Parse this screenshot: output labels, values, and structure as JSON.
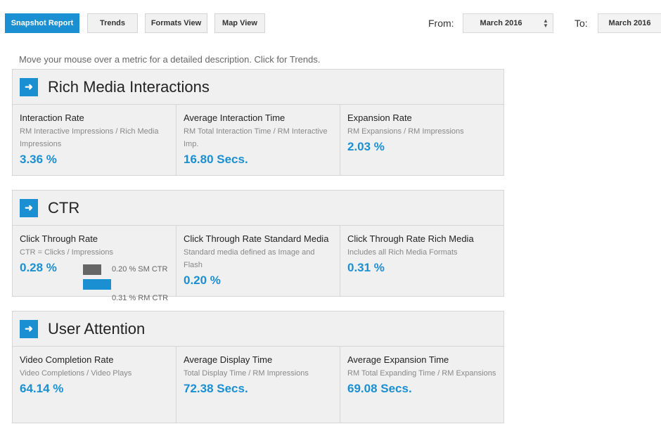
{
  "toolbar": {
    "buttons": [
      "Snapshot Report",
      "Trends",
      "Formats View",
      "Map View"
    ],
    "from_label": "From:",
    "from_value": "March 2016",
    "to_label": "To:",
    "to_value": "March 2016"
  },
  "hint": "Move your mouse over a metric for a detailed description. Click for Trends.",
  "sections": [
    {
      "title": "Rich Media Interactions",
      "metrics": [
        {
          "name": "Interaction Rate",
          "desc": "RM Interactive Impressions / Rich Media Impressions",
          "value": "3.36 %"
        },
        {
          "name": "Average Interaction Time",
          "desc": "RM Total Interaction Time / RM Interactive Imp.",
          "value": "16.80 Secs."
        },
        {
          "name": "Expansion Rate",
          "desc": "RM Expansions / RM Impressions",
          "value": "2.03 %"
        }
      ]
    },
    {
      "title": "CTR",
      "metrics": [
        {
          "name": "Click Through Rate",
          "desc": "CTR = Clicks / Impressions",
          "value": "0.28 %",
          "mini_chart": {
            "sm_label": "0.20 % SM CTR",
            "sm_value": 0.2,
            "rm_label": "0.31 % RM CTR",
            "rm_value": 0.31
          }
        },
        {
          "name": "Click Through Rate Standard Media",
          "desc": "Standard media defined as Image and Flash",
          "value": "0.20 %"
        },
        {
          "name": "Click Through Rate Rich Media",
          "desc": "Includes all Rich Media Formats",
          "value": "0.31 %"
        }
      ]
    },
    {
      "title": "User Attention",
      "metrics": [
        {
          "name": "Video Completion Rate",
          "desc": "Video Completions / Video Plays",
          "value": "64.14 %"
        },
        {
          "name": "Average Display Time",
          "desc": "Total Display Time / RM Impressions",
          "value": "72.38 Secs."
        },
        {
          "name": "Average Expansion Time",
          "desc": "RM Total Expanding Time / RM Expansions",
          "value": "69.08 Secs."
        }
      ]
    }
  ],
  "colors": {
    "accent": "#1a8fd1",
    "panel": "#f0f0f0",
    "sm_bar": "#666666"
  }
}
